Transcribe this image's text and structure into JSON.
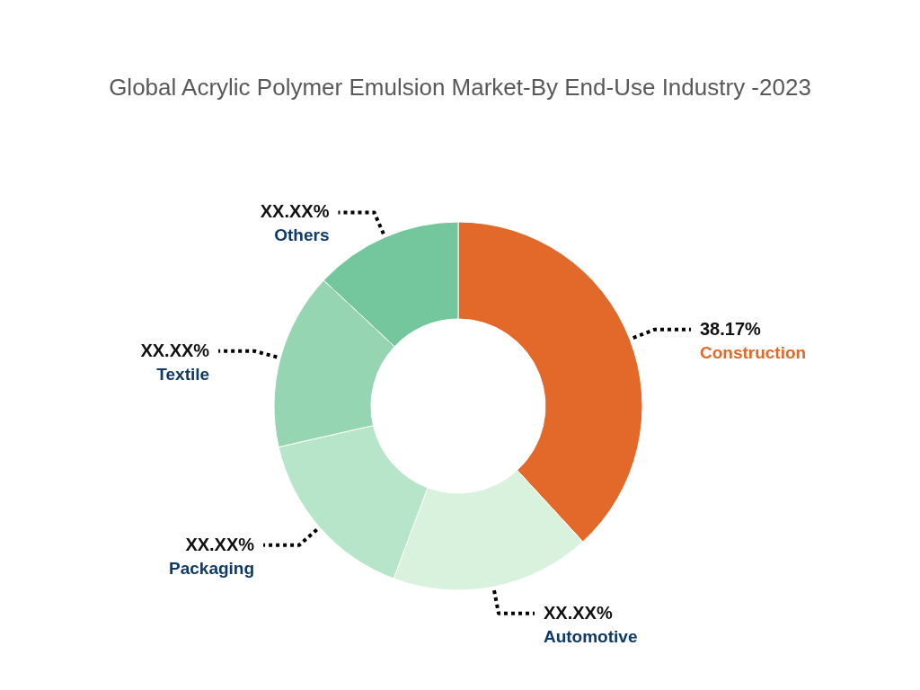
{
  "chart_data": {
    "type": "donut",
    "title": "Global Acrylic Polymer Emulsion Market-By End-Use Industry -2023",
    "categories": [
      "Construction",
      "Automotive",
      "Packaging",
      "Textile",
      "Others"
    ],
    "values": [
      38.17,
      17.53,
      15.73,
      15.54,
      13.03
    ],
    "colors": [
      "#e2692a",
      "#d9f2de",
      "#b7e5c9",
      "#96d5b2",
      "#74c69d"
    ],
    "value_labels": [
      "38.17%",
      "XX.XX%",
      "XX.XX%",
      "XX.XX%",
      "XX.XX%"
    ]
  }
}
